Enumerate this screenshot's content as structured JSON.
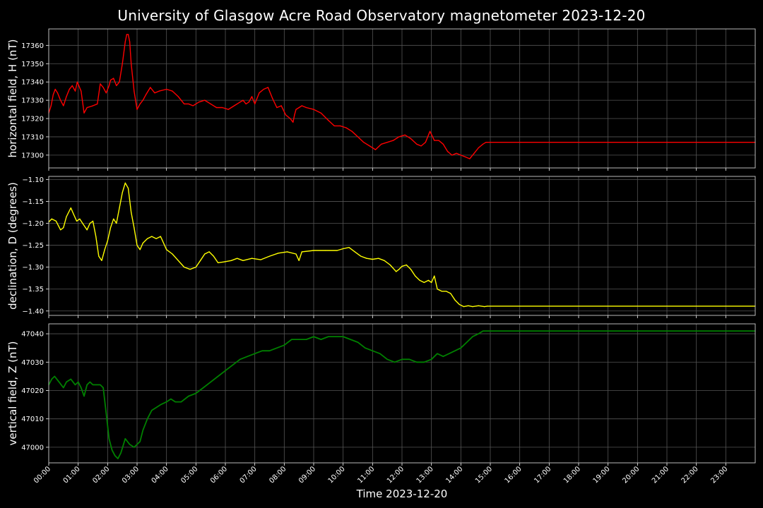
{
  "title": "University of Glasgow Acre Road Observatory magnetometer 2023-12-20",
  "xlabel": "Time 2023-12-20",
  "colors": {
    "background": "#000000",
    "grid": "#555555",
    "text": "#ffffff"
  },
  "chart_data": {
    "type": "line",
    "grid": true,
    "xlim": [
      "00:00",
      "24:00"
    ],
    "x_tick_labels": [
      "00:00",
      "01:00",
      "02:00",
      "03:00",
      "04:00",
      "05:00",
      "06:00",
      "07:00",
      "08:00",
      "09:00",
      "10:00",
      "11:00",
      "12:00",
      "13:00",
      "14:00",
      "15:00",
      "16:00",
      "17:00",
      "18:00",
      "19:00",
      "20:00",
      "21:00",
      "22:00",
      "23:00"
    ],
    "x_ticks_hours": [
      0,
      1,
      2,
      3,
      4,
      5,
      6,
      7,
      8,
      9,
      10,
      11,
      12,
      13,
      14,
      15,
      16,
      17,
      18,
      19,
      20,
      21,
      22,
      23
    ],
    "panels": [
      {
        "ylabel": "horizontal field, H (nT)",
        "color": "#ff0000",
        "ylim": [
          17293,
          17369
        ],
        "yticks": [
          17300,
          17310,
          17320,
          17330,
          17340,
          17350,
          17360
        ],
        "ytick_labels": [
          "17300",
          "17310",
          "17320",
          "17330",
          "17340",
          "17350",
          "17360"
        ],
        "series": [
          {
            "x_hours": [
              0,
              0.08,
              0.15,
              0.22,
              0.3,
              0.4,
              0.5,
              0.6,
              0.7,
              0.8,
              0.9,
              0.97,
              1.1,
              1.2,
              1.3,
              1.5,
              1.65,
              1.75,
              1.85,
              1.95,
              2.05,
              2.1,
              2.2,
              2.3,
              2.4,
              2.5,
              2.6,
              2.65,
              2.7,
              2.75,
              2.8,
              2.9,
              3.0,
              3.1,
              3.2,
              3.3,
              3.45,
              3.6,
              3.75,
              4.0,
              4.2,
              4.4,
              4.6,
              4.75,
              4.9,
              5.1,
              5.3,
              5.5,
              5.7,
              5.9,
              6.1,
              6.3,
              6.5,
              6.6,
              6.7,
              6.8,
              6.9,
              7.0,
              7.15,
              7.3,
              7.45,
              7.6,
              7.75,
              7.9,
              8.05,
              8.2,
              8.3,
              8.35,
              8.4,
              8.5,
              8.6,
              8.75,
              9.0,
              9.25,
              9.5,
              9.7,
              9.9,
              10.1,
              10.3,
              10.5,
              10.7,
              10.9,
              11.1,
              11.3,
              11.5,
              11.7,
              11.9,
              12.1,
              12.3,
              12.5,
              12.65,
              12.8,
              12.95,
              13.1,
              13.25,
              13.4,
              13.55,
              13.7,
              13.85,
              14.0,
              14.15,
              14.3,
              14.45,
              14.6,
              14.75,
              14.85,
              14.9,
              24.0
            ],
            "y": [
              17323,
              17327,
              17333,
              17336,
              17334,
              17330,
              17327,
              17332,
              17336,
              17338,
              17335,
              17340,
              17335,
              17323,
              17326,
              17327,
              17328,
              17339,
              17337,
              17334,
              17338,
              17341,
              17342,
              17338,
              17340,
              17350,
              17362,
              17366,
              17366,
              17362,
              17350,
              17335,
              17325,
              17328,
              17330,
              17333,
              17337,
              17334,
              17335,
              17336,
              17335,
              17332,
              17328,
              17328,
              17327,
              17329,
              17330,
              17328,
              17326,
              17326,
              17325,
              17327,
              17329,
              17330,
              17328,
              17329,
              17332,
              17328,
              17334,
              17336,
              17337,
              17331,
              17326,
              17327,
              17322,
              17320,
              17318,
              17322,
              17325,
              17326,
              17327,
              17326,
              17325,
              17323,
              17319,
              17316,
              17316,
              17315,
              17313,
              17310,
              17307,
              17305,
              17303,
              17306,
              17307,
              17308,
              17310,
              17311,
              17309,
              17306,
              17305,
              17307,
              17313,
              17308,
              17308,
              17306,
              17302,
              17300,
              17301,
              17300,
              17299,
              17298,
              17301,
              17304,
              17306,
              17307,
              17307,
              17307
            ]
          }
        ]
      },
      {
        "ylabel": "declination, D (degrees)",
        "color": "#ffff00",
        "ylim": [
          -1.41,
          -1.093
        ],
        "yticks": [
          -1.4,
          -1.35,
          -1.3,
          -1.25,
          -1.2,
          -1.15,
          -1.1
        ],
        "ytick_labels": [
          "−1.40",
          "−1.35",
          "−1.30",
          "−1.25",
          "−1.20",
          "−1.15",
          "−1.10"
        ],
        "series": [
          {
            "x_hours": [
              0,
              0.1,
              0.25,
              0.4,
              0.5,
              0.6,
              0.75,
              0.85,
              0.95,
              1.05,
              1.15,
              1.3,
              1.4,
              1.5,
              1.6,
              1.7,
              1.8,
              1.9,
              2.0,
              2.1,
              2.2,
              2.3,
              2.4,
              2.5,
              2.6,
              2.7,
              2.8,
              2.9,
              3.0,
              3.1,
              3.2,
              3.35,
              3.5,
              3.65,
              3.8,
              4.0,
              4.2,
              4.4,
              4.6,
              4.8,
              5.0,
              5.15,
              5.3,
              5.45,
              5.6,
              5.75,
              5.95,
              6.2,
              6.4,
              6.6,
              6.9,
              7.2,
              7.5,
              7.8,
              8.1,
              8.4,
              8.5,
              8.6,
              9.0,
              9.4,
              9.8,
              10.0,
              10.2,
              10.4,
              10.6,
              10.8,
              11.0,
              11.2,
              11.4,
              11.6,
              11.8,
              11.9,
              12.0,
              12.15,
              12.3,
              12.45,
              12.6,
              12.75,
              12.9,
              13.0,
              13.1,
              13.2,
              13.35,
              13.5,
              13.65,
              13.8,
              13.95,
              14.1,
              14.25,
              14.4,
              14.6,
              14.8,
              14.9,
              24.0
            ],
            "y": [
              -1.197,
              -1.19,
              -1.195,
              -1.215,
              -1.21,
              -1.185,
              -1.165,
              -1.18,
              -1.195,
              -1.19,
              -1.2,
              -1.215,
              -1.2,
              -1.195,
              -1.23,
              -1.275,
              -1.285,
              -1.26,
              -1.24,
              -1.21,
              -1.19,
              -1.2,
              -1.165,
              -1.13,
              -1.108,
              -1.12,
              -1.175,
              -1.21,
              -1.25,
              -1.26,
              -1.245,
              -1.235,
              -1.23,
              -1.235,
              -1.23,
              -1.26,
              -1.27,
              -1.285,
              -1.3,
              -1.305,
              -1.3,
              -1.285,
              -1.27,
              -1.265,
              -1.275,
              -1.29,
              -1.288,
              -1.285,
              -1.28,
              -1.285,
              -1.28,
              -1.283,
              -1.275,
              -1.268,
              -1.265,
              -1.27,
              -1.285,
              -1.265,
              -1.262,
              -1.262,
              -1.262,
              -1.258,
              -1.255,
              -1.265,
              -1.275,
              -1.28,
              -1.282,
              -1.28,
              -1.285,
              -1.295,
              -1.31,
              -1.305,
              -1.298,
              -1.295,
              -1.305,
              -1.32,
              -1.33,
              -1.335,
              -1.33,
              -1.335,
              -1.32,
              -1.35,
              -1.355,
              -1.355,
              -1.36,
              -1.375,
              -1.385,
              -1.39,
              -1.388,
              -1.39,
              -1.388,
              -1.39,
              -1.389,
              -1.389
            ]
          }
        ]
      },
      {
        "ylabel": "vertical field, Z (nT)",
        "color": "#008000",
        "ylim": [
          46994.5,
          47043.5
        ],
        "yticks": [
          47000,
          47010,
          47020,
          47030,
          47040
        ],
        "ytick_labels": [
          "47000",
          "47010",
          "47020",
          "47030",
          "47040"
        ],
        "series": [
          {
            "x_hours": [
              0,
              0.1,
              0.2,
              0.35,
              0.5,
              0.6,
              0.75,
              0.9,
              1.0,
              1.1,
              1.2,
              1.3,
              1.4,
              1.5,
              1.6,
              1.75,
              1.85,
              1.95,
              2.05,
              2.15,
              2.25,
              2.35,
              2.45,
              2.6,
              2.75,
              2.9,
              3.0,
              3.1,
              3.2,
              3.35,
              3.5,
              3.65,
              3.8,
              4.0,
              4.15,
              4.3,
              4.5,
              4.75,
              5.0,
              5.25,
              5.5,
              5.75,
              6.0,
              6.25,
              6.5,
              6.75,
              7.0,
              7.25,
              7.5,
              7.75,
              8.0,
              8.25,
              8.5,
              8.75,
              9.0,
              9.25,
              9.5,
              9.75,
              10.0,
              10.25,
              10.5,
              10.75,
              11.0,
              11.25,
              11.5,
              11.75,
              12.0,
              12.25,
              12.5,
              12.75,
              13.0,
              13.2,
              13.4,
              13.6,
              13.8,
              14.0,
              14.2,
              14.4,
              14.6,
              14.75,
              14.85,
              14.9,
              24.0
            ],
            "y": [
              47022,
              47024,
              47025,
              47023,
              47021,
              47023,
              47024,
              47022,
              47023,
              47021,
              47018,
              47022,
              47023,
              47022,
              47022,
              47022,
              47021,
              47012,
              47003,
              46999,
              46997,
              46996,
              46998,
              47003,
              47001,
              47000,
              47001,
              47002,
              47006,
              47010,
              47013,
              47014,
              47015,
              47016,
              47017,
              47016,
              47016,
              47018,
              47019,
              47021,
              47023,
              47025,
              47027,
              47029,
              47031,
              47032,
              47033,
              47034,
              47034,
              47035,
              47036,
              47038,
              47038,
              47038,
              47039,
              47038,
              47039,
              47039,
              47039,
              47038,
              47037,
              47035,
              47034,
              47033,
              47031,
              47030,
              47031,
              47031,
              47030,
              47030,
              47031,
              47033,
              47032,
              47033,
              47034,
              47035,
              47037,
              47039,
              47040,
              47041,
              47041,
              47041,
              47041
            ]
          }
        ]
      }
    ]
  }
}
